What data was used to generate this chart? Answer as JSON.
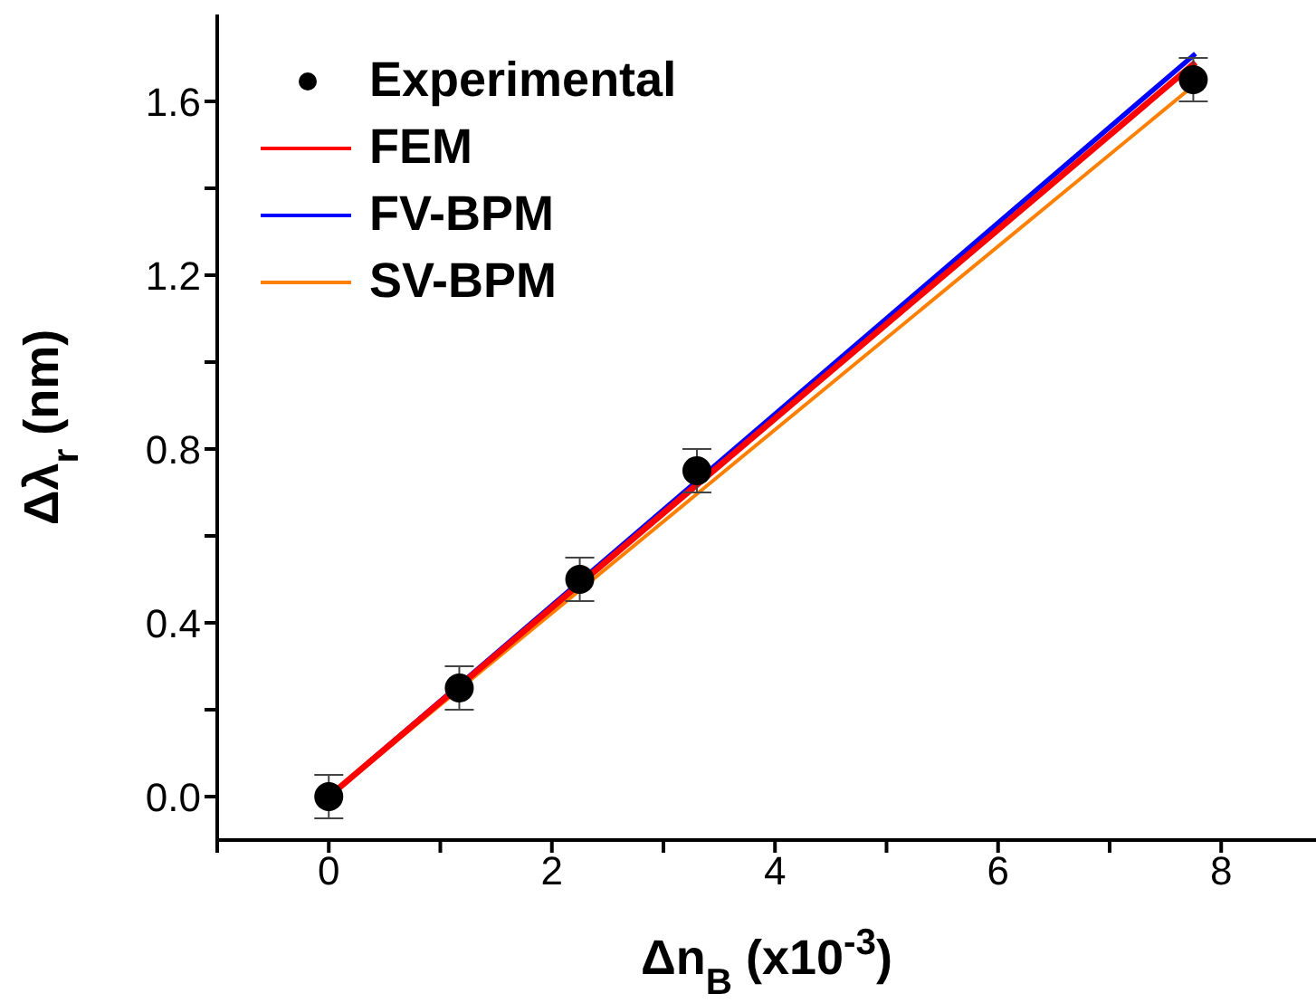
{
  "chart_data": {
    "type": "scatter",
    "xlabel": "Δn$_{B}$ (x10$^{-3}$)",
    "ylabel": "Δλ$_{r}$ (nm)",
    "xlim": [
      -1,
      8.85
    ],
    "ylim": [
      -0.1,
      1.8
    ],
    "xticks": [
      {
        "value": -1,
        "label": null
      },
      0,
      {
        "value": 1,
        "label": null
      },
      2,
      {
        "value": 3,
        "label": null
      },
      4,
      {
        "value": 5,
        "label": null
      },
      6,
      {
        "value": 7,
        "label": null
      },
      8
    ],
    "yticks": [
      {
        "value": 0,
        "label": "0.0"
      },
      {
        "value": 0.2,
        "label": null
      },
      0.4,
      {
        "value": 0.6,
        "label": null
      },
      0.8,
      {
        "value": 1,
        "label": null
      },
      1.2,
      {
        "value": 1.4,
        "label": null
      },
      1.6
    ],
    "legend": "top left",
    "marker": "circle",
    "series": [
      {
        "name": "Experimental",
        "color": "#000000",
        "x": [
          0,
          1.17,
          2.25,
          3.3,
          7.75
        ],
        "values": [
          0,
          0.25,
          0.5,
          0.75,
          1.65
        ],
        "errors": [
          0.05,
          0.05,
          0.05,
          0.05,
          0.05
        ]
      },
      {
        "name": "FEM",
        "type": "line",
        "marker": "none",
        "color": "#ff0000",
        "x": [
          0,
          7.77
        ],
        "values": [
          0,
          1.69
        ]
      },
      {
        "name": "FV-BPM",
        "type": "line",
        "marker": "none",
        "color": "#0000ff",
        "x": [
          0,
          7.77
        ],
        "values": [
          0,
          1.71
        ]
      },
      {
        "name": "SV-BPM",
        "type": "line",
        "marker": "none",
        "color": "#ff8000",
        "x": [
          0,
          7.77
        ],
        "values": [
          0,
          1.64
        ]
      }
    ]
  }
}
